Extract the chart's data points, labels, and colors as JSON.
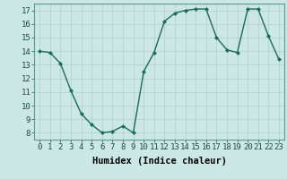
{
  "x": [
    0,
    1,
    2,
    3,
    4,
    5,
    6,
    7,
    8,
    9,
    10,
    11,
    12,
    13,
    14,
    15,
    16,
    17,
    18,
    19,
    20,
    21,
    22,
    23
  ],
  "y": [
    14.0,
    13.9,
    13.1,
    11.1,
    9.4,
    8.6,
    8.0,
    8.1,
    8.5,
    8.0,
    12.5,
    13.9,
    16.2,
    16.8,
    17.0,
    17.1,
    17.1,
    15.0,
    14.1,
    13.9,
    17.1,
    17.1,
    15.1,
    13.4
  ],
  "line_color": "#1a6b5a",
  "marker": "D",
  "marker_size": 2,
  "bg_color": "#cce8e5",
  "grid_color": "#b0ceca",
  "xlabel": "Humidex (Indice chaleur)",
  "xlim": [
    -0.5,
    23.5
  ],
  "ylim": [
    7.5,
    17.5
  ],
  "yticks": [
    8,
    9,
    10,
    11,
    12,
    13,
    14,
    15,
    16,
    17
  ],
  "xticks": [
    0,
    1,
    2,
    3,
    4,
    5,
    6,
    7,
    8,
    9,
    10,
    11,
    12,
    13,
    14,
    15,
    16,
    17,
    18,
    19,
    20,
    21,
    22,
    23
  ],
  "tick_fontsize": 6.5,
  "xlabel_fontsize": 7.5,
  "line_width": 1.0
}
